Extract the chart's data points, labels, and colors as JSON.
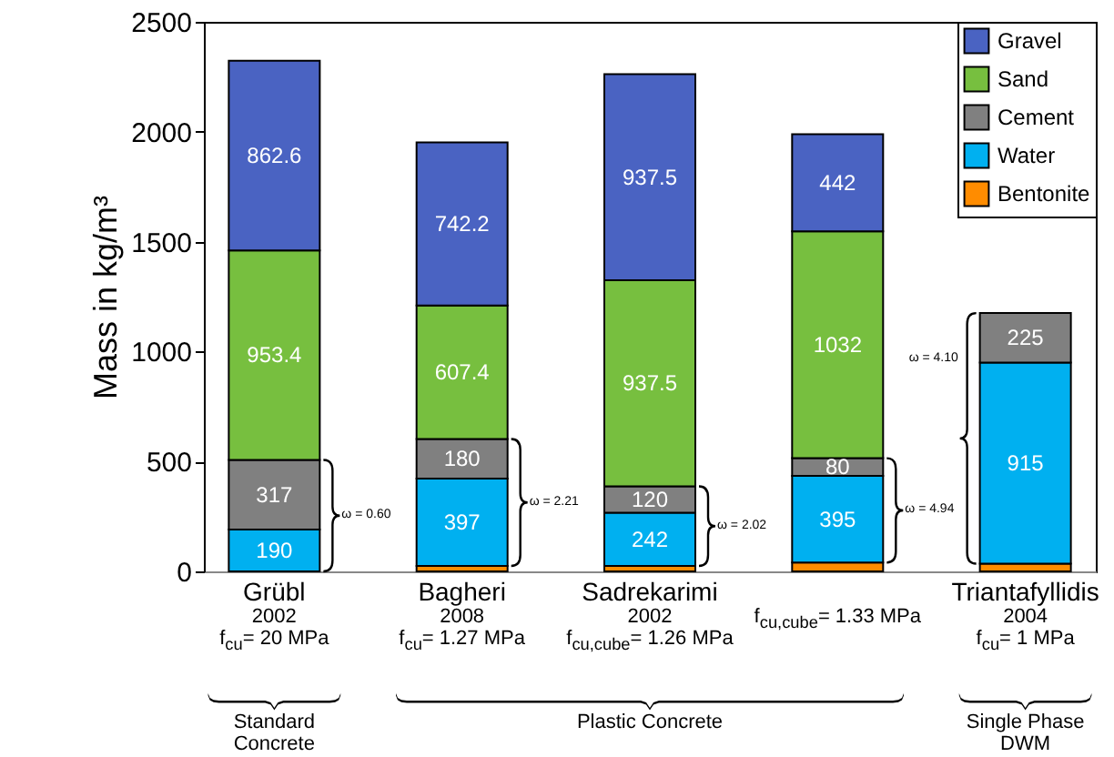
{
  "chart_data": {
    "type": "bar",
    "stacked": true,
    "ylabel": "Mass in kg/m³",
    "categories": [
      "Grübl\n2002\nf$_{cu}$= 20 MPa",
      "Bagheri\n2008\nf$_{cu}$= 1.27 MPa",
      "Sadrekarimi\n2002\nf$_{cu,cube}$= 1.26 MPa",
      "f$_{cu,cube}$= 1.33 MPa",
      "Triantafyllidis\n2004\nf$_{cu}$= 1 MPa"
    ],
    "series": [
      {
        "name": "Bentonite",
        "color": "#ff8c00",
        "values": [
          null,
          25,
          25,
          40,
          35
        ]
      },
      {
        "name": "Water",
        "color": "#00b0f0",
        "values": [
          190,
          397,
          242,
          395,
          915
        ],
        "value_labels": [
          "190",
          "397",
          "242",
          "395",
          "915"
        ]
      },
      {
        "name": "Cement",
        "color": "#808080",
        "values": [
          317,
          180,
          120,
          80,
          225
        ],
        "value_labels": [
          "317",
          "180",
          "120",
          "80",
          "225"
        ]
      },
      {
        "name": "Sand",
        "color": "#77bf3f",
        "values": [
          953.4,
          607.4,
          937.5,
          1032,
          null
        ],
        "value_labels": [
          "953.4",
          "607.4",
          "937.5",
          "1032",
          null
        ]
      },
      {
        "name": "Gravel",
        "color": "#4a63c2",
        "values": [
          862.6,
          742.2,
          937.5,
          442,
          null
        ],
        "value_labels": [
          "862.6",
          "742.2",
          "937.5",
          "442",
          null
        ]
      }
    ],
    "ylim": [
      0,
      2500
    ],
    "yticks": [
      0,
      500,
      1000,
      1500,
      2000,
      2500
    ],
    "legend": "top right",
    "annotations": [
      "ω = 0.60",
      "ω = 2.21",
      "ω = 2.02",
      "ω = 4.94",
      "ω = 4.10",
      "Standard\nConcrete",
      "Plastic Concrete",
      "Single Phase\nDWM"
    ]
  }
}
